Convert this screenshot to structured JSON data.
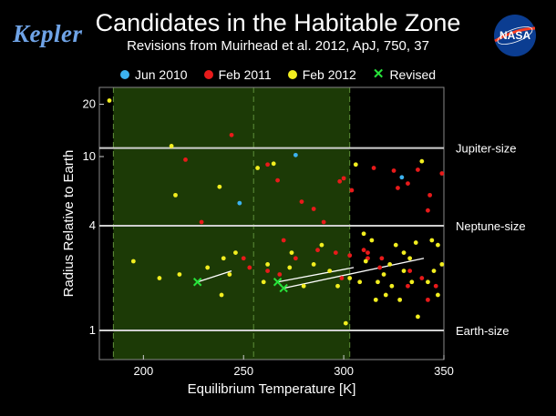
{
  "header": {
    "logo_text": "Kepler",
    "title": "Candidates in the Habitable Zone",
    "subtitle": "Revisions from Muirhead et al. 2012, ApJ, 750, 37",
    "nasa_logo_text": "NASA"
  },
  "legend": [
    {
      "label": "Jun 2010",
      "color": "#3cb2ef",
      "marker": "dot"
    },
    {
      "label": "Feb 2011",
      "color": "#e81a1a",
      "marker": "dot"
    },
    {
      "label": "Feb 2012",
      "color": "#f2ee1f",
      "marker": "dot"
    },
    {
      "label": "Revised",
      "color": "#27e23a",
      "marker": "x"
    }
  ],
  "chart_data": {
    "type": "scatter",
    "xlabel": "Equilibrium Temperature [K]",
    "ylabel": "Radius Relative to Earth",
    "xlim": [
      178,
      350
    ],
    "ylim": [
      0.68,
      25
    ],
    "y_scale": "log",
    "x_ticks": [
      200,
      250,
      300,
      350
    ],
    "y_ticks": [
      1,
      4,
      10,
      20
    ],
    "habitable_zone_x": [
      185,
      303
    ],
    "habitable_zone_mid_x": 255,
    "reference_lines": [
      {
        "y": 1,
        "label": "Earth-size"
      },
      {
        "y": 4,
        "label": "Neptune-size"
      },
      {
        "y": 11.2,
        "label": "Jupiter-size"
      }
    ],
    "series": [
      {
        "name": "Jun 2010",
        "color": "#3cb2ef",
        "points": [
          [
            276,
            10.2
          ],
          [
            248,
            5.4
          ],
          [
            329,
            7.6
          ]
        ]
      },
      {
        "name": "Feb 2011",
        "color": "#e81a1a",
        "points": [
          [
            244,
            13.3
          ],
          [
            221,
            9.6
          ],
          [
            262,
            9.0
          ],
          [
            279,
            5.5
          ],
          [
            285,
            5.0
          ],
          [
            290,
            4.2
          ],
          [
            298,
            7.2
          ],
          [
            304,
            6.4
          ],
          [
            270,
            3.3
          ],
          [
            287,
            2.9
          ],
          [
            296,
            2.8
          ],
          [
            303,
            2.7
          ],
          [
            312,
            2.6
          ],
          [
            319,
            2.6
          ],
          [
            325,
            8.3
          ],
          [
            332,
            7.0
          ],
          [
            337,
            8.4
          ],
          [
            343,
            6.0
          ],
          [
            349,
            8.0
          ],
          [
            315,
            8.6
          ],
          [
            339,
            2.0
          ],
          [
            229,
            4.2
          ],
          [
            250,
            2.6
          ],
          [
            253,
            2.3
          ],
          [
            262,
            2.2
          ],
          [
            268,
            2.1
          ],
          [
            267,
            7.3
          ],
          [
            300,
            7.5
          ],
          [
            327,
            6.6
          ],
          [
            342,
            4.9
          ],
          [
            310,
            2.9
          ],
          [
            318,
            2.3
          ],
          [
            333,
            2.2
          ],
          [
            346,
            1.8
          ],
          [
            342,
            1.5
          ],
          [
            332,
            1.8
          ],
          [
            299,
            2.0
          ],
          [
            312,
            2.8
          ],
          [
            276,
            2.6
          ]
        ]
      },
      {
        "name": "Feb 2012",
        "color": "#f2ee1f",
        "points": [
          [
            183,
            21.0
          ],
          [
            214,
            11.5
          ],
          [
            216,
            6.0
          ],
          [
            195,
            2.5
          ],
          [
            238,
            6.7
          ],
          [
            257,
            8.6
          ],
          [
            265,
            9.1
          ],
          [
            246,
            2.8
          ],
          [
            240,
            2.6
          ],
          [
            232,
            2.3
          ],
          [
            208,
            2.0
          ],
          [
            218,
            2.1
          ],
          [
            243,
            2.1
          ],
          [
            239,
            1.6
          ],
          [
            260,
            1.9
          ],
          [
            262,
            2.4
          ],
          [
            273,
            2.3
          ],
          [
            280,
            1.8
          ],
          [
            285,
            2.4
          ],
          [
            289,
            3.1
          ],
          [
            293,
            2.2
          ],
          [
            297,
            1.8
          ],
          [
            301,
            1.1
          ],
          [
            303,
            2.0
          ],
          [
            306,
            9.0
          ],
          [
            310,
            3.6
          ],
          [
            314,
            3.3
          ],
          [
            317,
            1.9
          ],
          [
            320,
            2.1
          ],
          [
            323,
            2.4
          ],
          [
            326,
            3.1
          ],
          [
            330,
            2.8
          ],
          [
            333,
            2.6
          ],
          [
            336,
            3.2
          ],
          [
            339,
            9.4
          ],
          [
            342,
            1.9
          ],
          [
            344,
            3.3
          ],
          [
            347,
            3.1
          ],
          [
            349,
            2.4
          ],
          [
            308,
            1.9
          ],
          [
            316,
            1.5
          ],
          [
            328,
            1.5
          ],
          [
            337,
            1.2
          ],
          [
            311,
            2.5
          ],
          [
            324,
            1.8
          ],
          [
            334,
            1.9
          ],
          [
            345,
            2.2
          ],
          [
            321,
            1.6
          ],
          [
            330,
            2.2
          ],
          [
            347,
            1.6
          ],
          [
            274,
            2.8
          ]
        ]
      },
      {
        "name": "Revised",
        "color": "#27e23a",
        "points": [
          [
            227,
            1.9
          ],
          [
            267,
            1.9
          ],
          [
            270,
            1.75
          ]
        ]
      }
    ],
    "revision_arrows": [
      {
        "from": [
          227,
          1.9
        ],
        "to": [
          244,
          2.2
        ]
      },
      {
        "from": [
          267,
          1.9
        ],
        "to": [
          305,
          2.3
        ]
      },
      {
        "from": [
          270,
          1.75
        ],
        "to": [
          340,
          2.6
        ]
      }
    ]
  }
}
